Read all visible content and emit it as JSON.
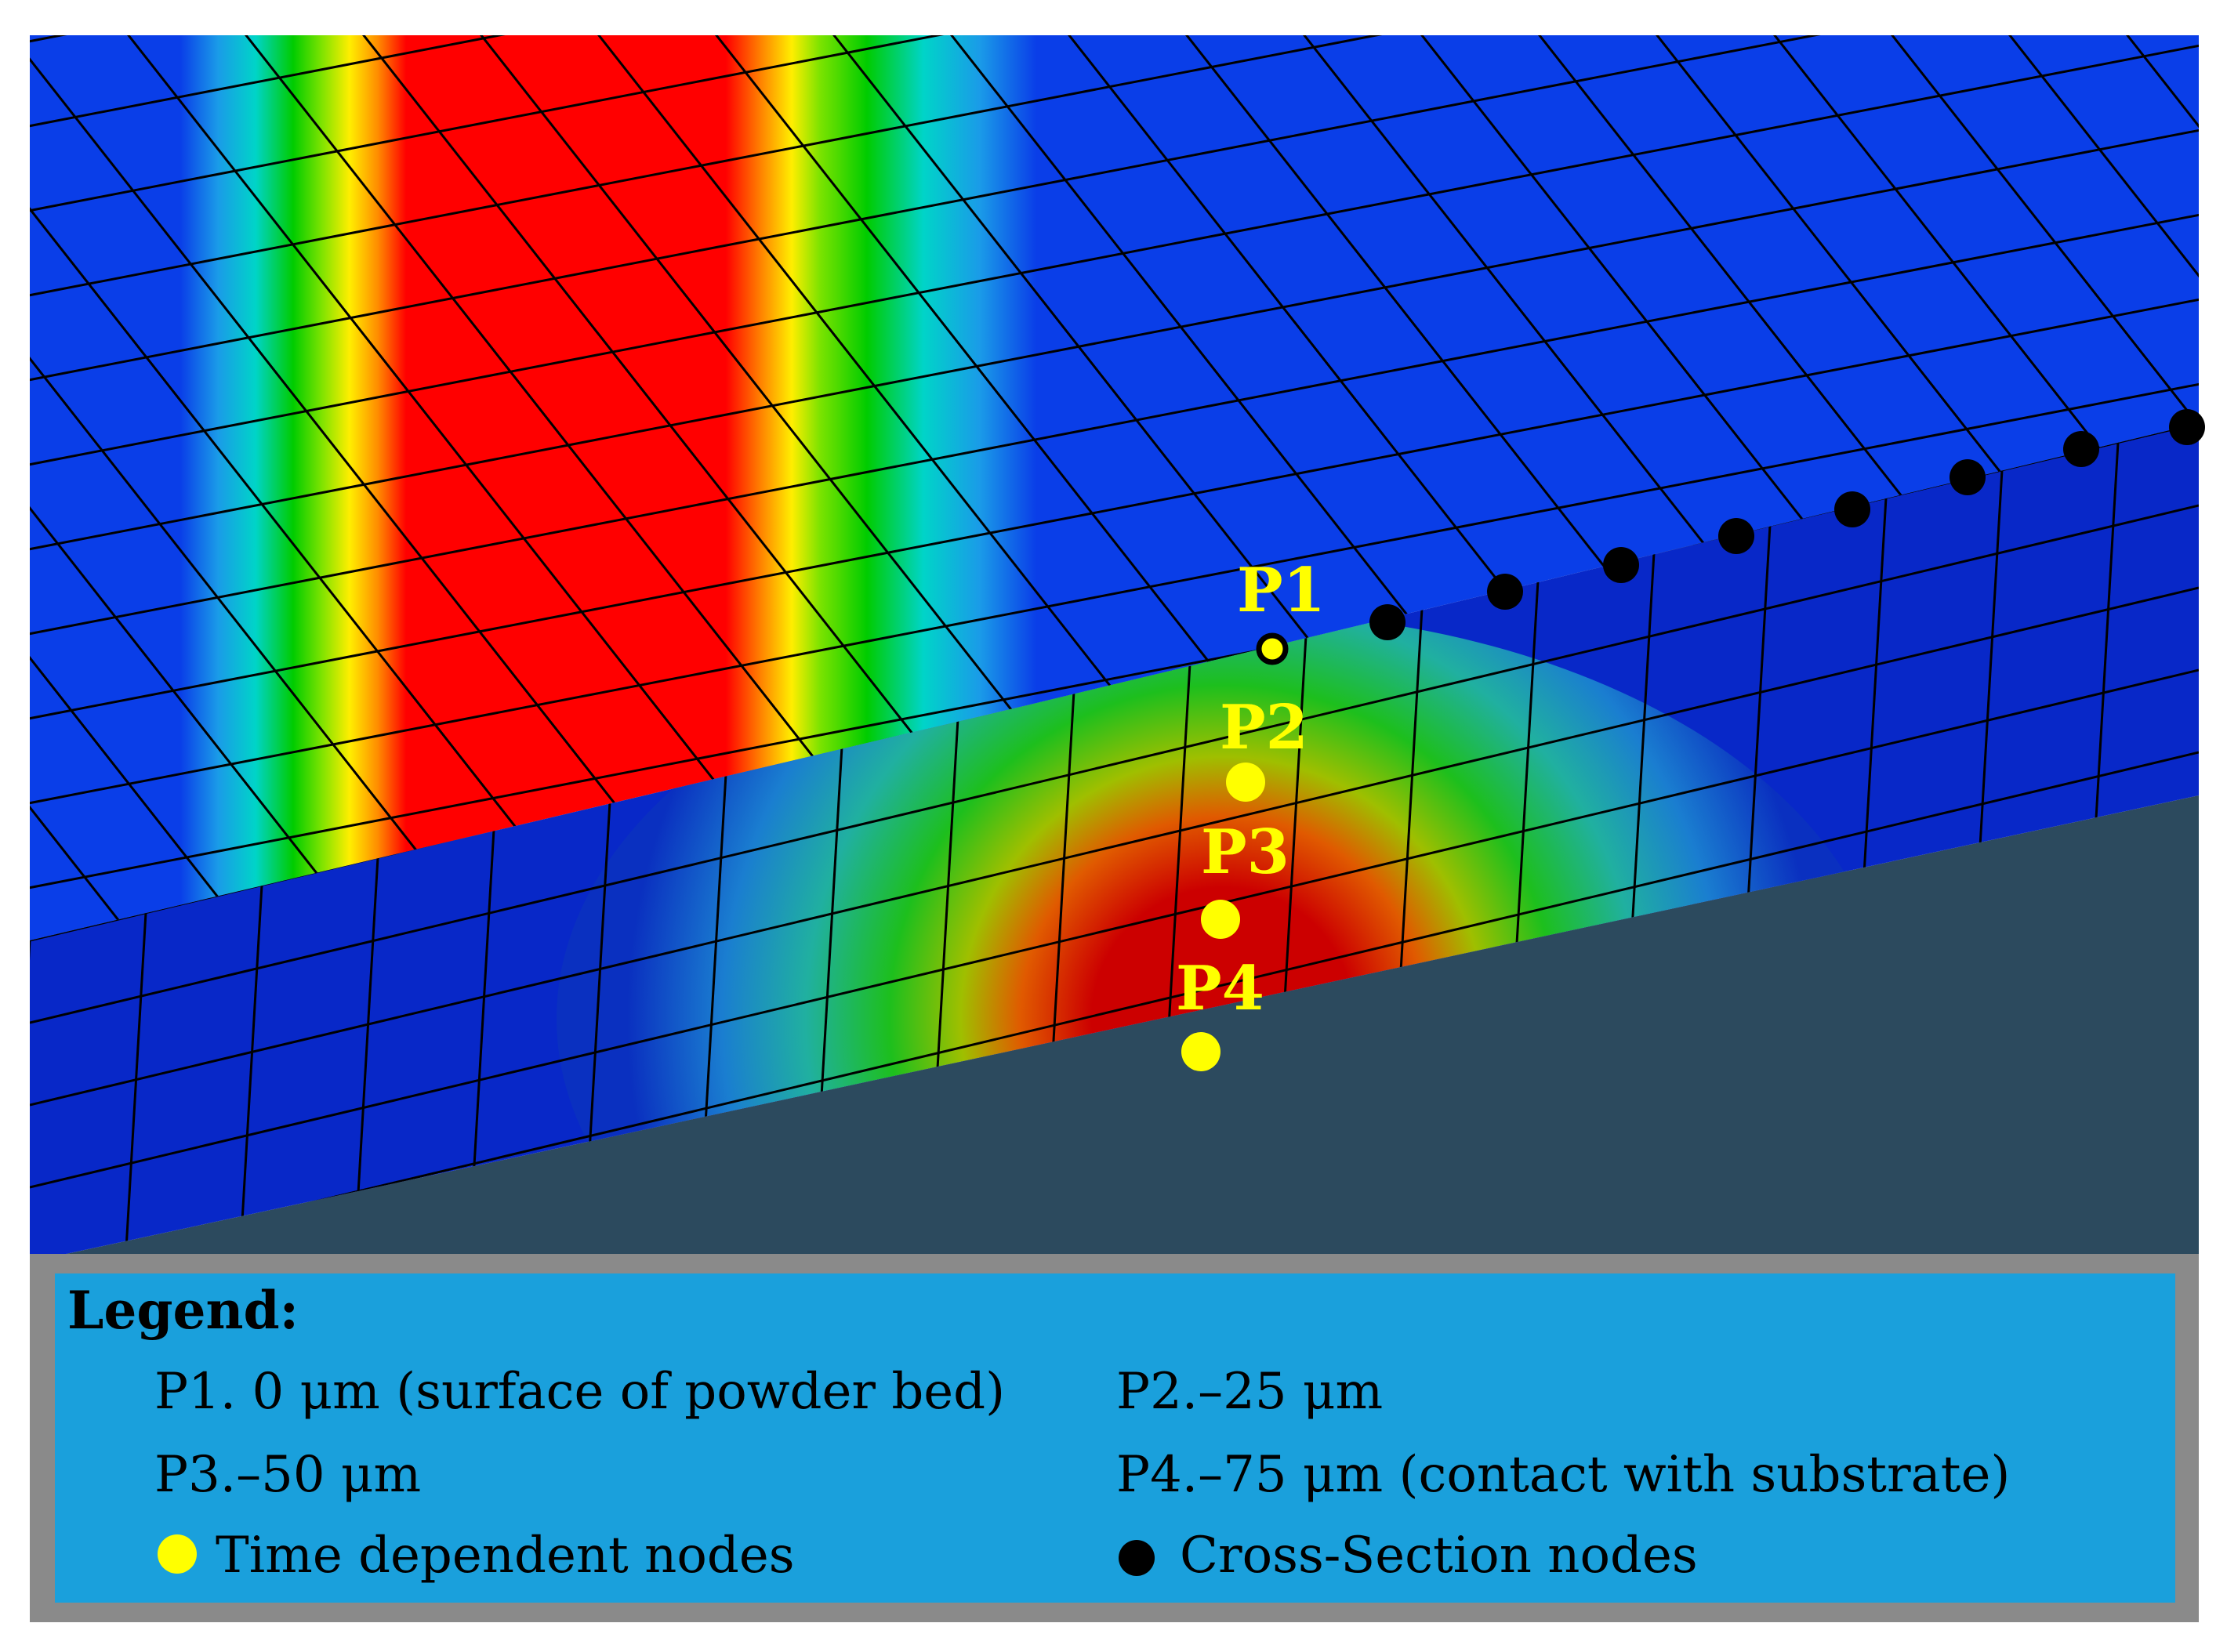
{
  "figure": {
    "colors": {
      "red": "#ff0000",
      "orange": "#ff8c00",
      "yellow": "#ffee00",
      "lime": "#7ce300",
      "green": "#00cc00",
      "cyan": "#00d4c8",
      "lightblue": "#1a9be8",
      "blue": "#0a3ee8",
      "deepblue": "#0828c8",
      "substrate": "#2c4a5e",
      "legend_box": "#1aa0dc",
      "legend_frame": "#8a8a8a",
      "time_node": "#ffff00",
      "section_node": "#000000"
    },
    "node_labels": {
      "p1": "P1",
      "p2": "P2",
      "p3": "P3",
      "p4": "P4"
    },
    "legend": {
      "title": "Legend:",
      "entries": {
        "p1": "P1. 0  μm (surface of powder bed)",
        "p2": "P2.–25  μm",
        "p3": "P3.–50  μm",
        "p4": "P4.–75  μm (contact with substrate)"
      },
      "markers": {
        "time_dependent": "Time dependent nodes",
        "cross_section": "Cross-Section nodes"
      }
    }
  }
}
